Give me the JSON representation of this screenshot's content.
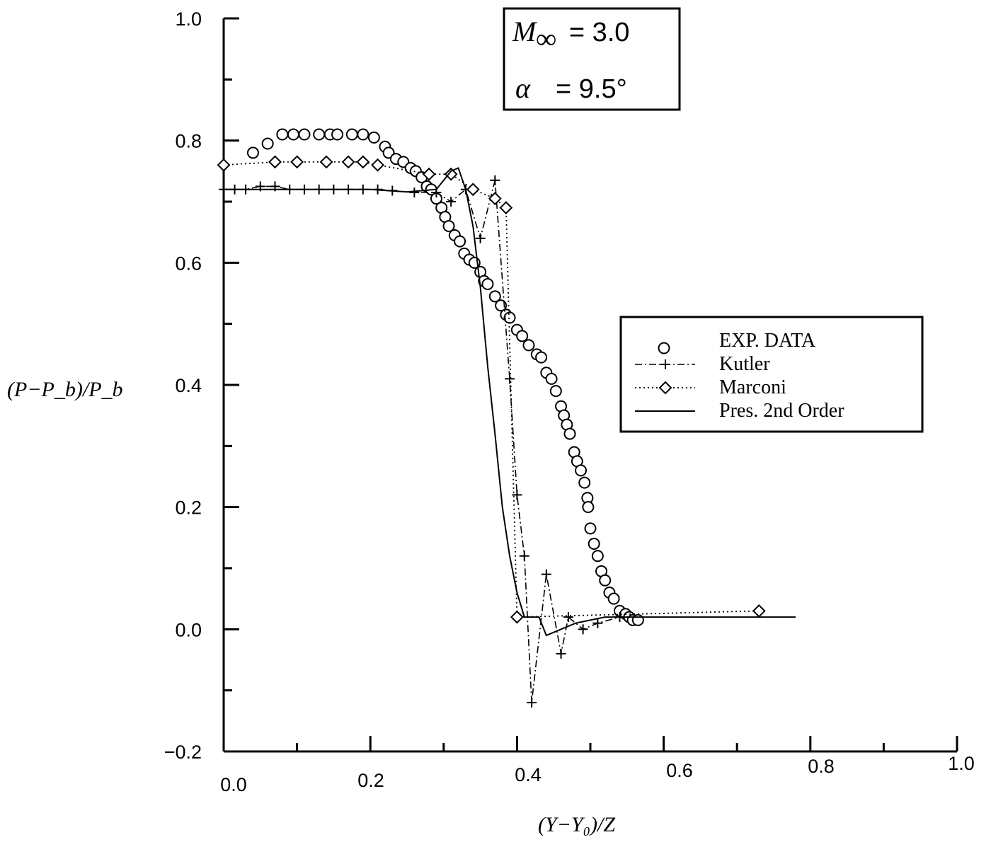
{
  "chart_data": {
    "type": "line",
    "xlabel": "(Y−Y₀)/Z",
    "ylabel": "(P−P_b)/P_b",
    "xlim": [
      0.0,
      1.0
    ],
    "ylim": [
      -0.2,
      1.0
    ],
    "x_ticks": [
      "0.0",
      "0.2",
      "0.4",
      "0.6",
      "0.8",
      "1.0"
    ],
    "y_ticks": [
      "−0.2",
      "0.0",
      "0.2",
      "0.4",
      "0.6",
      "0.8",
      "1.0"
    ],
    "grid": false,
    "legend_position": "right",
    "annotation": {
      "mach_symbol": "M",
      "mach_sub": "∞",
      "mach_value": "=  3.0",
      "alpha_symbol": "α",
      "alpha_value": "=  9.5°"
    },
    "series": [
      {
        "name": "EXP. DATA",
        "style": "markers-circle",
        "points": [
          [
            0.04,
            0.78
          ],
          [
            0.06,
            0.795
          ],
          [
            0.08,
            0.81
          ],
          [
            0.095,
            0.81
          ],
          [
            0.11,
            0.81
          ],
          [
            0.13,
            0.81
          ],
          [
            0.145,
            0.81
          ],
          [
            0.155,
            0.81
          ],
          [
            0.175,
            0.81
          ],
          [
            0.19,
            0.81
          ],
          [
            0.205,
            0.805
          ],
          [
            0.22,
            0.79
          ],
          [
            0.225,
            0.78
          ],
          [
            0.235,
            0.77
          ],
          [
            0.245,
            0.765
          ],
          [
            0.255,
            0.755
          ],
          [
            0.262,
            0.75
          ],
          [
            0.27,
            0.74
          ],
          [
            0.277,
            0.725
          ],
          [
            0.283,
            0.72
          ],
          [
            0.29,
            0.705
          ],
          [
            0.297,
            0.69
          ],
          [
            0.302,
            0.675
          ],
          [
            0.307,
            0.66
          ],
          [
            0.315,
            0.645
          ],
          [
            0.322,
            0.635
          ],
          [
            0.328,
            0.615
          ],
          [
            0.335,
            0.605
          ],
          [
            0.342,
            0.6
          ],
          [
            0.35,
            0.585
          ],
          [
            0.355,
            0.57
          ],
          [
            0.36,
            0.565
          ],
          [
            0.37,
            0.545
          ],
          [
            0.378,
            0.53
          ],
          [
            0.385,
            0.515
          ],
          [
            0.39,
            0.51
          ],
          [
            0.4,
            0.49
          ],
          [
            0.407,
            0.48
          ],
          [
            0.416,
            0.465
          ],
          [
            0.427,
            0.45
          ],
          [
            0.433,
            0.445
          ],
          [
            0.44,
            0.42
          ],
          [
            0.447,
            0.41
          ],
          [
            0.453,
            0.39
          ],
          [
            0.46,
            0.365
          ],
          [
            0.464,
            0.35
          ],
          [
            0.468,
            0.335
          ],
          [
            0.472,
            0.32
          ],
          [
            0.478,
            0.29
          ],
          [
            0.482,
            0.275
          ],
          [
            0.487,
            0.26
          ],
          [
            0.492,
            0.24
          ],
          [
            0.496,
            0.215
          ],
          [
            0.497,
            0.2
          ],
          [
            0.5,
            0.165
          ],
          [
            0.505,
            0.14
          ],
          [
            0.51,
            0.12
          ],
          [
            0.515,
            0.095
          ],
          [
            0.52,
            0.08
          ],
          [
            0.526,
            0.06
          ],
          [
            0.532,
            0.05
          ],
          [
            0.54,
            0.03
          ],
          [
            0.548,
            0.025
          ],
          [
            0.553,
            0.02
          ],
          [
            0.558,
            0.015
          ],
          [
            0.565,
            0.015
          ]
        ]
      },
      {
        "name": "Kutler",
        "style": "dash-dot-plus",
        "points": [
          [
            0.0,
            0.72
          ],
          [
            0.015,
            0.72
          ],
          [
            0.03,
            0.72
          ],
          [
            0.05,
            0.725
          ],
          [
            0.07,
            0.725
          ],
          [
            0.09,
            0.72
          ],
          [
            0.11,
            0.72
          ],
          [
            0.13,
            0.72
          ],
          [
            0.15,
            0.72
          ],
          [
            0.17,
            0.72
          ],
          [
            0.19,
            0.72
          ],
          [
            0.21,
            0.72
          ],
          [
            0.23,
            0.718
          ],
          [
            0.26,
            0.715
          ],
          [
            0.29,
            0.715
          ],
          [
            0.31,
            0.7
          ],
          [
            0.33,
            0.72
          ],
          [
            0.35,
            0.64
          ],
          [
            0.37,
            0.735
          ],
          [
            0.39,
            0.41
          ],
          [
            0.4,
            0.22
          ],
          [
            0.41,
            0.12
          ],
          [
            0.42,
            -0.12
          ],
          [
            0.44,
            0.09
          ],
          [
            0.46,
            -0.04
          ],
          [
            0.47,
            0.02
          ],
          [
            0.49,
            0.0
          ],
          [
            0.51,
            0.01
          ],
          [
            0.54,
            0.02
          ]
        ]
      },
      {
        "name": "Marconi",
        "style": "dotted-diamond",
        "points": [
          [
            0.0,
            0.76
          ],
          [
            0.07,
            0.765
          ],
          [
            0.1,
            0.765
          ],
          [
            0.14,
            0.765
          ],
          [
            0.17,
            0.765
          ],
          [
            0.19,
            0.765
          ],
          [
            0.21,
            0.76
          ],
          [
            0.28,
            0.745
          ],
          [
            0.31,
            0.745
          ],
          [
            0.34,
            0.72
          ],
          [
            0.37,
            0.705
          ],
          [
            0.385,
            0.69
          ],
          [
            0.4,
            0.02
          ],
          [
            0.73,
            0.03
          ]
        ]
      },
      {
        "name": "Pres. 2nd Order",
        "style": "solid",
        "points": [
          [
            0.0,
            0.72
          ],
          [
            0.1,
            0.72
          ],
          [
            0.2,
            0.72
          ],
          [
            0.25,
            0.716
          ],
          [
            0.29,
            0.72
          ],
          [
            0.3,
            0.735
          ],
          [
            0.31,
            0.75
          ],
          [
            0.32,
            0.755
          ],
          [
            0.33,
            0.72
          ],
          [
            0.34,
            0.66
          ],
          [
            0.35,
            0.56
          ],
          [
            0.36,
            0.43
          ],
          [
            0.37,
            0.32
          ],
          [
            0.38,
            0.2
          ],
          [
            0.39,
            0.12
          ],
          [
            0.4,
            0.06
          ],
          [
            0.41,
            0.02
          ],
          [
            0.43,
            0.02
          ],
          [
            0.44,
            -0.01
          ],
          [
            0.46,
            0.0
          ],
          [
            0.48,
            0.01
          ],
          [
            0.5,
            0.015
          ],
          [
            0.52,
            0.02
          ],
          [
            0.55,
            0.02
          ],
          [
            0.6,
            0.02
          ],
          [
            0.7,
            0.02
          ],
          [
            0.78,
            0.02
          ]
        ]
      }
    ]
  }
}
